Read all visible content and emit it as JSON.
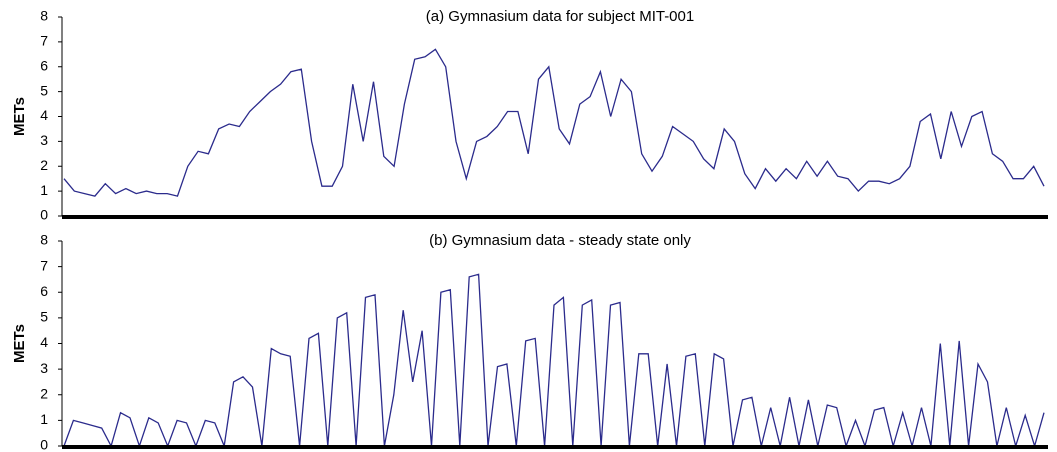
{
  "chart_data": [
    {
      "type": "line",
      "title": "(a) Gymnasium data for subject MIT-001",
      "y_label": "METs",
      "color": "#2b2b8c",
      "ylim": [
        0,
        8
      ],
      "yticks": [
        0,
        1,
        2,
        3,
        4,
        5,
        6,
        7,
        8
      ],
      "values": [
        1.5,
        1.0,
        0.9,
        0.8,
        1.3,
        0.9,
        1.1,
        0.9,
        1.0,
        0.9,
        0.9,
        0.8,
        2.0,
        2.6,
        2.5,
        3.5,
        3.7,
        3.6,
        4.2,
        4.6,
        5.0,
        5.3,
        5.8,
        5.9,
        3.0,
        1.2,
        1.2,
        2.0,
        5.3,
        3.0,
        5.4,
        2.4,
        2.0,
        4.5,
        6.3,
        6.4,
        6.7,
        6.0,
        3.0,
        1.5,
        3.0,
        3.2,
        3.6,
        4.2,
        4.2,
        2.5,
        5.5,
        6.0,
        3.5,
        2.9,
        4.5,
        4.8,
        5.8,
        4.0,
        5.5,
        5.0,
        2.5,
        1.8,
        2.4,
        3.6,
        3.3,
        3.0,
        2.3,
        1.9,
        3.5,
        3.0,
        1.7,
        1.1,
        1.9,
        1.4,
        1.9,
        1.5,
        2.2,
        1.6,
        2.2,
        1.6,
        1.5,
        1.0,
        1.4,
        1.4,
        1.3,
        1.5,
        2.0,
        3.8,
        4.1,
        2.3,
        4.2,
        2.8,
        4.0,
        4.2,
        2.5,
        2.2,
        1.5,
        1.5,
        2.0,
        1.2
      ]
    },
    {
      "type": "line",
      "title": "(b) Gymnasium data - steady state only",
      "y_label": "METs",
      "color": "#2b2b8c",
      "ylim": [
        0,
        8
      ],
      "yticks": [
        0,
        1,
        2,
        3,
        4,
        5,
        6,
        7,
        8
      ],
      "values": [
        0,
        1.0,
        0.9,
        0.8,
        0.7,
        0,
        1.3,
        1.1,
        0,
        1.1,
        0.9,
        0,
        1.0,
        0.9,
        0,
        1.0,
        0.9,
        0,
        2.5,
        2.7,
        2.3,
        0,
        3.8,
        3.6,
        3.5,
        0,
        4.2,
        4.4,
        0,
        5.0,
        5.2,
        0,
        5.8,
        5.9,
        0,
        2.0,
        5.3,
        2.5,
        4.5,
        0,
        6.0,
        6.1,
        0,
        6.6,
        6.7,
        0,
        3.1,
        3.2,
        0,
        4.1,
        4.2,
        0,
        5.5,
        5.8,
        0,
        5.5,
        5.7,
        0,
        5.5,
        5.6,
        0,
        3.6,
        3.6,
        0,
        3.2,
        0,
        3.5,
        3.6,
        0,
        3.6,
        3.4,
        0,
        1.8,
        1.9,
        0,
        1.5,
        0,
        1.9,
        0,
        1.8,
        0,
        1.6,
        1.5,
        0,
        1.0,
        0,
        1.4,
        1.5,
        0,
        1.3,
        0,
        1.5,
        0,
        4.0,
        0,
        4.1,
        0,
        3.2,
        2.5,
        0,
        1.5,
        0,
        1.2,
        0,
        1.3
      ]
    }
  ]
}
